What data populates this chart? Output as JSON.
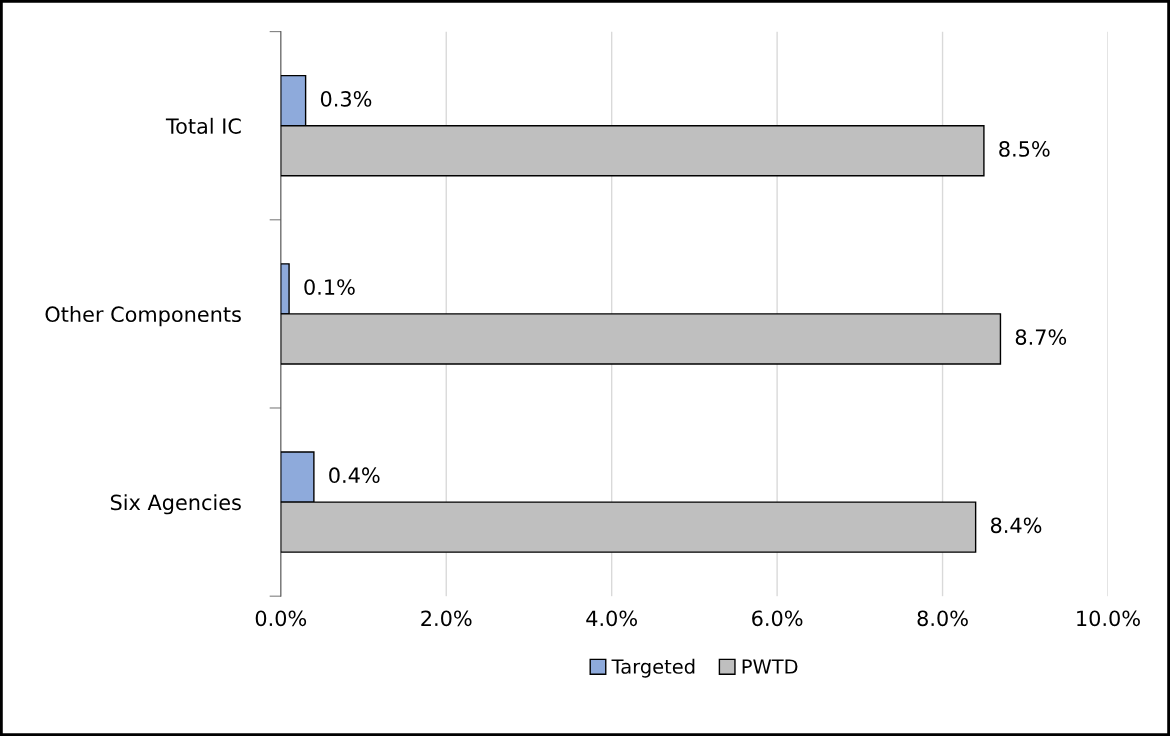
{
  "chart_data": {
    "type": "bar",
    "orientation": "horizontal",
    "categories": [
      "Total IC",
      "Other Components",
      "Six Agencies"
    ],
    "series": [
      {
        "name": "Targeted",
        "color": "#8eaadb",
        "values": [
          0.3,
          0.1,
          0.4
        ],
        "value_labels": [
          "0.3%",
          "0.1%",
          "0.4%"
        ]
      },
      {
        "name": "PWTD",
        "color": "#bfbfbf",
        "values": [
          8.5,
          8.7,
          8.4
        ],
        "value_labels": [
          "8.5%",
          "8.7%",
          "8.4%"
        ]
      }
    ],
    "xlim": [
      0,
      10
    ],
    "xticks": [
      {
        "value": 0,
        "label": "0.0%"
      },
      {
        "value": 2,
        "label": "2.0%"
      },
      {
        "value": 4,
        "label": "4.0%"
      },
      {
        "value": 6,
        "label": "6.0%"
      },
      {
        "value": 8,
        "label": "8.0%"
      },
      {
        "value": 10,
        "label": "10.0%"
      }
    ],
    "grid": "x",
    "legend": "bottom"
  }
}
